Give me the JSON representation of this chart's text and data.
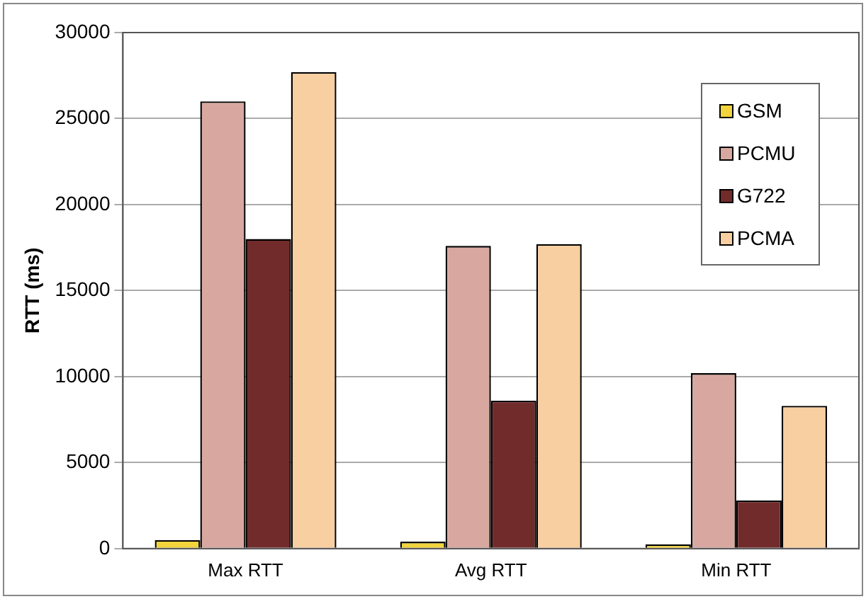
{
  "chart_data": {
    "type": "bar",
    "ylabel": "RTT (ms)",
    "categories": [
      "Max RTT",
      "Avg RTT",
      "Min RTT"
    ],
    "series": [
      {
        "name": "GSM",
        "color": "#f2d43c",
        "values": [
          500,
          400,
          250
        ]
      },
      {
        "name": "PCMU",
        "color": "#d8a8a0",
        "values": [
          26000,
          17600,
          10200
        ]
      },
      {
        "name": "G722",
        "color": "#722b2b",
        "values": [
          18000,
          8600,
          2800
        ]
      },
      {
        "name": "PCMA",
        "color": "#f8cfa0",
        "values": [
          27700,
          17700,
          8300
        ]
      }
    ],
    "ylim": [
      0,
      30000
    ],
    "yticks": [
      0,
      5000,
      10000,
      15000,
      20000,
      25000,
      30000
    ],
    "grid": "y",
    "legend": "top right"
  }
}
